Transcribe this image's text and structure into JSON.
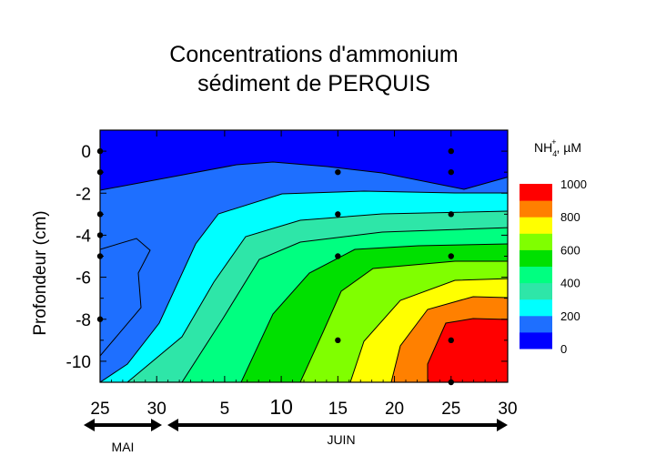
{
  "chart_data": {
    "type": "contour",
    "title_line1": "Concentrations d'ammonium",
    "title_line2": "sédiment de PERQUIS",
    "ylabel": "Profondeur (cm)",
    "legend_title_base": "NH",
    "legend_title_sub": "4",
    "legend_title_sup": "+",
    "legend_title_unit": ", µM",
    "ylim": [
      -11,
      1
    ],
    "y_ticks": [
      0,
      -2,
      -4,
      -6,
      -8,
      -10
    ],
    "y_tick_labels": [
      "0",
      "-2",
      "-4",
      "-6",
      "-8",
      "-10"
    ],
    "x_tick_labels": [
      "25",
      "30",
      "5",
      "10",
      "15",
      "20",
      "25",
      "30"
    ],
    "x_tick_dates": [
      "May 25",
      "May 30",
      "June 5",
      "June 10",
      "June 15",
      "June 20",
      "June 25",
      "June 30"
    ],
    "month_labels": {
      "may": "MAI",
      "june": "JUIN"
    },
    "legend": {
      "levels": [
        0,
        100,
        200,
        300,
        400,
        500,
        600,
        700,
        800,
        900,
        1000
      ],
      "labels": [
        "1000",
        "800",
        "600",
        "400",
        "200",
        "0"
      ],
      "colors": [
        "#0000ff",
        "#1e6fff",
        "#00ffff",
        "#2ee6a8",
        "#00ff80",
        "#00e000",
        "#80ff00",
        "#ffff00",
        "#ff8000",
        "#ff0000"
      ]
    },
    "sample_points": [
      {
        "date": "May 25",
        "depth": [
          0,
          -1,
          -3,
          -4,
          -5,
          -8
        ]
      },
      {
        "date": "June 15",
        "depth": [
          -1,
          -3,
          -5,
          -9
        ]
      },
      {
        "date": "June 25",
        "depth": [
          0,
          -1,
          -3,
          -5,
          -9,
          -11
        ]
      }
    ],
    "bands": [
      {
        "color": "#0000ff",
        "top": [
          [
            0,
            1
          ],
          [
            40,
            1
          ],
          [
            40,
            -1
          ],
          [
            0,
            -1
          ]
        ]
      },
      {
        "color": "#1e6fff"
      },
      {
        "color": "#00ffff"
      },
      {
        "color": "#2ee6a8"
      },
      {
        "color": "#00ff80"
      },
      {
        "color": "#00e000"
      },
      {
        "color": "#80ff00"
      },
      {
        "color": "#ffff00"
      },
      {
        "color": "#ff8000"
      },
      {
        "color": "#ff0000"
      }
    ]
  }
}
